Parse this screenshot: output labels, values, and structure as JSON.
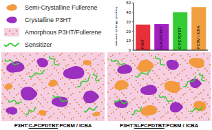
{
  "legend": [
    {
      "label": "Semi-Crystalline Fullerene",
      "color": "#f39a3e"
    },
    {
      "label": "Crystalline P3HT",
      "color": "#9b2fbf"
    },
    {
      "label": "Amorphous P3HT/Fullerene",
      "color": "#f5cfe1"
    },
    {
      "label": "Sensitizer",
      "color": "#3ccd3c"
    }
  ],
  "panels": [
    {
      "caption": {
        "prefix": "P3HT:",
        "underlined": "C-PCPDTBT",
        "suffix": ":PCBM / ICBA"
      }
    },
    {
      "caption": {
        "prefix": "P3HT:",
        "underlined": "Si-PCPDTBT",
        "suffix": ":PCBM / ICBA"
      }
    }
  ],
  "chart_data": {
    "type": "bar",
    "ylabel": "Surface Energy (mN/m)",
    "categories": [
      "P3HT",
      "Si-PCPDTBT",
      "C-PCPDTBT",
      "PCBM / ICBA"
    ],
    "values": [
      27,
      27.5,
      40,
      45.5
    ],
    "colors": [
      "#e8303a",
      "#a020c0",
      "#33cc33",
      "#f0a040"
    ],
    "ylim": [
      0,
      50
    ],
    "yticks": [
      0,
      10,
      20,
      30,
      40,
      50
    ]
  }
}
